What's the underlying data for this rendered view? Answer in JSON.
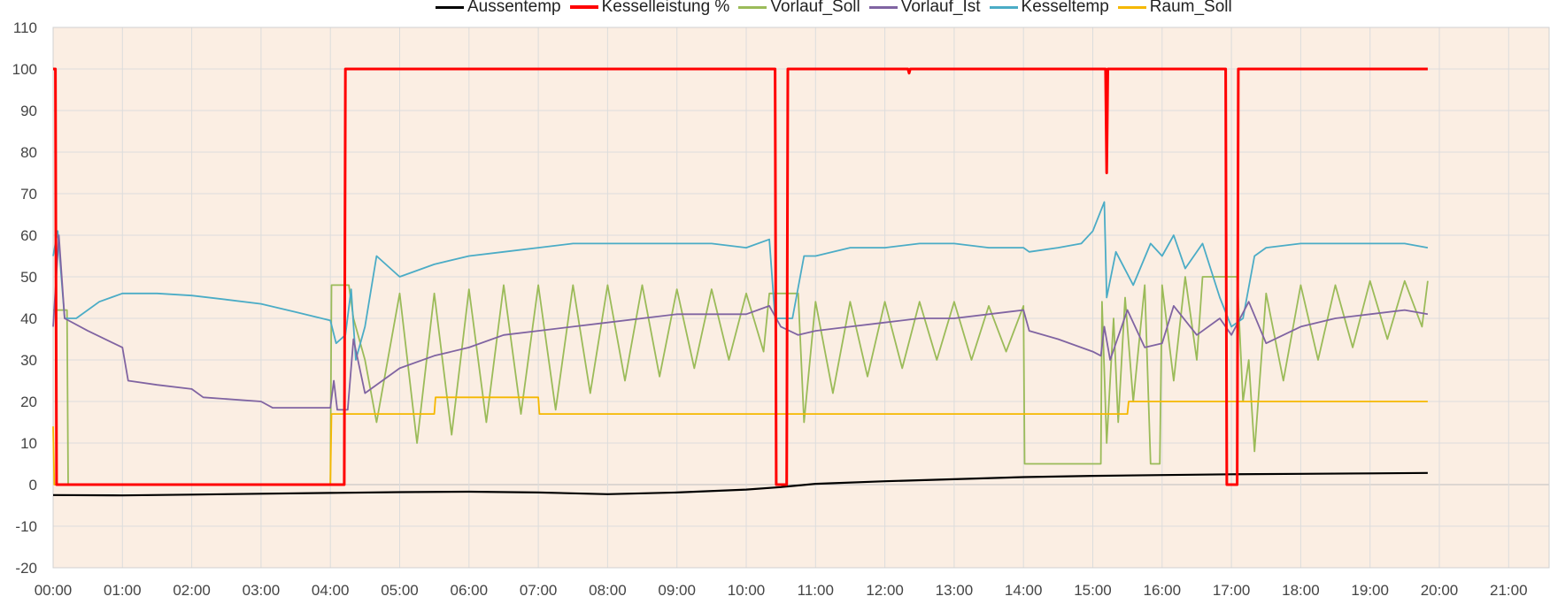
{
  "chart_data": {
    "type": "line",
    "title": "",
    "xlabel": "",
    "ylabel": "",
    "ylim": [
      -20,
      110
    ],
    "xlim": [
      "00:00",
      "21:00"
    ],
    "y_ticks": [
      "110",
      "100",
      "90",
      "80",
      "70",
      "60",
      "50",
      "40",
      "30",
      "20",
      "10",
      "0",
      "-10",
      "-20"
    ],
    "x_ticks": [
      "00:00",
      "01:00",
      "02:00",
      "03:00",
      "04:00",
      "05:00",
      "06:00",
      "07:00",
      "08:00",
      "09:00",
      "10:00",
      "11:00",
      "12:00",
      "13:00",
      "14:00",
      "15:00",
      "16:00",
      "17:00",
      "18:00",
      "19:00",
      "20:00",
      "21:00"
    ],
    "grid": true,
    "legend_position": "top",
    "plot_background": "#fbeee3",
    "series": [
      {
        "name": "Aussentemp",
        "color": "#000000",
        "points": [
          [
            "00:00",
            -2.5
          ],
          [
            "01:00",
            -2.6
          ],
          [
            "02:00",
            -2.4
          ],
          [
            "03:00",
            -2.2
          ],
          [
            "04:00",
            -2.0
          ],
          [
            "05:00",
            -1.8
          ],
          [
            "06:00",
            -1.7
          ],
          [
            "07:00",
            -1.9
          ],
          [
            "08:00",
            -2.3
          ],
          [
            "09:00",
            -1.9
          ],
          [
            "10:00",
            -1.2
          ],
          [
            "10:30",
            -0.6
          ],
          [
            "11:00",
            0.2
          ],
          [
            "12:00",
            0.8
          ],
          [
            "13:00",
            1.3
          ],
          [
            "14:00",
            1.8
          ],
          [
            "15:00",
            2.1
          ],
          [
            "16:00",
            2.3
          ],
          [
            "17:00",
            2.5
          ],
          [
            "18:00",
            2.6
          ],
          [
            "19:00",
            2.7
          ],
          [
            "19:50",
            2.8
          ]
        ]
      },
      {
        "name": "Kesselleistung %",
        "color": "#ff0000",
        "points": [
          [
            "00:00",
            100
          ],
          [
            "00:02",
            100
          ],
          [
            "00:03",
            0
          ],
          [
            "04:12",
            0
          ],
          [
            "04:13",
            100
          ],
          [
            "10:25",
            100
          ],
          [
            "10:26",
            0
          ],
          [
            "10:35",
            0
          ],
          [
            "10:36",
            100
          ],
          [
            "12:20",
            100
          ],
          [
            "12:21",
            99
          ],
          [
            "12:22",
            100
          ],
          [
            "15:11",
            100
          ],
          [
            "15:12",
            75
          ],
          [
            "15:13",
            100
          ],
          [
            "16:55",
            100
          ],
          [
            "16:56",
            0
          ],
          [
            "17:05",
            0
          ],
          [
            "17:06",
            100
          ],
          [
            "19:50",
            100
          ]
        ]
      },
      {
        "name": "Vorlauf_Soll",
        "color": "#9bbb59",
        "points": [
          [
            "00:00",
            42
          ],
          [
            "00:12",
            42
          ],
          [
            "00:13",
            0
          ],
          [
            "04:00",
            0
          ],
          [
            "04:01",
            48
          ],
          [
            "04:16",
            48
          ],
          [
            "04:20",
            40
          ],
          [
            "04:30",
            30
          ],
          [
            "04:40",
            15
          ],
          [
            "05:00",
            46
          ],
          [
            "05:15",
            10
          ],
          [
            "05:30",
            46
          ],
          [
            "05:45",
            12
          ],
          [
            "06:00",
            47
          ],
          [
            "06:15",
            15
          ],
          [
            "06:30",
            48
          ],
          [
            "06:45",
            17
          ],
          [
            "07:00",
            48
          ],
          [
            "07:15",
            18
          ],
          [
            "07:30",
            48
          ],
          [
            "07:45",
            22
          ],
          [
            "08:00",
            48
          ],
          [
            "08:15",
            25
          ],
          [
            "08:30",
            48
          ],
          [
            "08:45",
            26
          ],
          [
            "09:00",
            47
          ],
          [
            "09:15",
            28
          ],
          [
            "09:30",
            47
          ],
          [
            "09:45",
            30
          ],
          [
            "10:00",
            46
          ],
          [
            "10:15",
            32
          ],
          [
            "10:20",
            46
          ],
          [
            "10:45",
            46
          ],
          [
            "10:50",
            15
          ],
          [
            "11:00",
            44
          ],
          [
            "11:15",
            22
          ],
          [
            "11:30",
            44
          ],
          [
            "11:45",
            26
          ],
          [
            "12:00",
            44
          ],
          [
            "12:15",
            28
          ],
          [
            "12:30",
            44
          ],
          [
            "12:45",
            30
          ],
          [
            "13:00",
            44
          ],
          [
            "13:15",
            30
          ],
          [
            "13:30",
            43
          ],
          [
            "13:45",
            32
          ],
          [
            "14:00",
            43
          ],
          [
            "14:01",
            5
          ],
          [
            "15:07",
            5
          ],
          [
            "15:08",
            44
          ],
          [
            "15:12",
            10
          ],
          [
            "15:18",
            40
          ],
          [
            "15:22",
            15
          ],
          [
            "15:28",
            45
          ],
          [
            "15:35",
            20
          ],
          [
            "15:45",
            48
          ],
          [
            "15:50",
            5
          ],
          [
            "15:58",
            5
          ],
          [
            "16:00",
            48
          ],
          [
            "16:10",
            25
          ],
          [
            "16:20",
            50
          ],
          [
            "16:30",
            30
          ],
          [
            "16:35",
            50
          ],
          [
            "17:05",
            50
          ],
          [
            "17:10",
            20
          ],
          [
            "17:15",
            30
          ],
          [
            "17:20",
            8
          ],
          [
            "17:30",
            46
          ],
          [
            "17:45",
            25
          ],
          [
            "18:00",
            48
          ],
          [
            "18:15",
            30
          ],
          [
            "18:30",
            48
          ],
          [
            "18:45",
            33
          ],
          [
            "19:00",
            49
          ],
          [
            "19:15",
            35
          ],
          [
            "19:30",
            49
          ],
          [
            "19:45",
            38
          ],
          [
            "19:50",
            49
          ]
        ]
      },
      {
        "name": "Vorlauf_Ist",
        "color": "#8064a2",
        "points": [
          [
            "00:00",
            38
          ],
          [
            "00:05",
            60
          ],
          [
            "00:10",
            40
          ],
          [
            "00:30",
            37
          ],
          [
            "01:00",
            33
          ],
          [
            "01:05",
            25
          ],
          [
            "01:30",
            24
          ],
          [
            "02:00",
            23
          ],
          [
            "02:10",
            21
          ],
          [
            "03:00",
            20
          ],
          [
            "03:10",
            18.5
          ],
          [
            "04:00",
            18.5
          ],
          [
            "04:03",
            25
          ],
          [
            "04:06",
            18
          ],
          [
            "04:15",
            18
          ],
          [
            "04:20",
            35
          ],
          [
            "04:30",
            22
          ],
          [
            "05:00",
            28
          ],
          [
            "05:30",
            31
          ],
          [
            "06:00",
            33
          ],
          [
            "06:30",
            36
          ],
          [
            "07:00",
            37
          ],
          [
            "07:30",
            38
          ],
          [
            "08:00",
            39
          ],
          [
            "08:30",
            40
          ],
          [
            "09:00",
            41
          ],
          [
            "09:30",
            41
          ],
          [
            "10:00",
            41
          ],
          [
            "10:20",
            43
          ],
          [
            "10:30",
            38
          ],
          [
            "10:45",
            36
          ],
          [
            "11:00",
            37
          ],
          [
            "11:30",
            38
          ],
          [
            "12:00",
            39
          ],
          [
            "12:30",
            40
          ],
          [
            "13:00",
            40
          ],
          [
            "13:30",
            41
          ],
          [
            "14:00",
            42
          ],
          [
            "14:05",
            37
          ],
          [
            "14:30",
            35
          ],
          [
            "15:00",
            32
          ],
          [
            "15:07",
            31
          ],
          [
            "15:10",
            38
          ],
          [
            "15:15",
            30
          ],
          [
            "15:30",
            42
          ],
          [
            "15:45",
            33
          ],
          [
            "16:00",
            34
          ],
          [
            "16:10",
            43
          ],
          [
            "16:30",
            36
          ],
          [
            "16:50",
            40
          ],
          [
            "17:00",
            36
          ],
          [
            "17:15",
            44
          ],
          [
            "17:30",
            34
          ],
          [
            "18:00",
            38
          ],
          [
            "18:30",
            40
          ],
          [
            "19:00",
            41
          ],
          [
            "19:30",
            42
          ],
          [
            "19:50",
            41
          ]
        ]
      },
      {
        "name": "Kesseltemp",
        "color": "#4bacc6",
        "points": [
          [
            "00:00",
            55
          ],
          [
            "00:04",
            61
          ],
          [
            "00:10",
            40
          ],
          [
            "00:20",
            40
          ],
          [
            "00:40",
            44
          ],
          [
            "01:00",
            46
          ],
          [
            "01:30",
            46
          ],
          [
            "02:00",
            45.5
          ],
          [
            "02:30",
            44.5
          ],
          [
            "03:00",
            43.5
          ],
          [
            "03:30",
            41.5
          ],
          [
            "04:00",
            39.5
          ],
          [
            "04:05",
            34
          ],
          [
            "04:13",
            36
          ],
          [
            "04:18",
            47
          ],
          [
            "04:22",
            30
          ],
          [
            "04:30",
            38
          ],
          [
            "04:40",
            55
          ],
          [
            "05:00",
            50
          ],
          [
            "05:30",
            53
          ],
          [
            "06:00",
            55
          ],
          [
            "06:30",
            56
          ],
          [
            "07:00",
            57
          ],
          [
            "07:30",
            58
          ],
          [
            "08:00",
            58
          ],
          [
            "08:30",
            58
          ],
          [
            "09:00",
            58
          ],
          [
            "09:30",
            58
          ],
          [
            "10:00",
            57
          ],
          [
            "10:20",
            59
          ],
          [
            "10:25",
            40
          ],
          [
            "10:40",
            40
          ],
          [
            "10:50",
            55
          ],
          [
            "11:00",
            55
          ],
          [
            "11:30",
            57
          ],
          [
            "12:00",
            57
          ],
          [
            "12:30",
            58
          ],
          [
            "13:00",
            58
          ],
          [
            "13:30",
            57
          ],
          [
            "14:00",
            57
          ],
          [
            "14:05",
            56
          ],
          [
            "14:30",
            57
          ],
          [
            "14:50",
            58
          ],
          [
            "15:00",
            61
          ],
          [
            "15:10",
            68
          ],
          [
            "15:12",
            45
          ],
          [
            "15:20",
            56
          ],
          [
            "15:35",
            48
          ],
          [
            "15:50",
            58
          ],
          [
            "16:00",
            55
          ],
          [
            "16:10",
            60
          ],
          [
            "16:20",
            52
          ],
          [
            "16:35",
            58
          ],
          [
            "16:50",
            45
          ],
          [
            "17:00",
            38
          ],
          [
            "17:10",
            40
          ],
          [
            "17:20",
            55
          ],
          [
            "17:30",
            57
          ],
          [
            "18:00",
            58
          ],
          [
            "18:30",
            58
          ],
          [
            "19:00",
            58
          ],
          [
            "19:30",
            58
          ],
          [
            "19:50",
            57
          ]
        ]
      },
      {
        "name": "Raum_Soll",
        "color": "#f5b800",
        "points": [
          [
            "00:00",
            14
          ],
          [
            "00:01",
            0
          ],
          [
            "04:00",
            0
          ],
          [
            "04:01",
            17
          ],
          [
            "05:30",
            17
          ],
          [
            "05:31",
            21
          ],
          [
            "07:00",
            21
          ],
          [
            "07:01",
            17
          ],
          [
            "15:30",
            17
          ],
          [
            "15:31",
            20
          ],
          [
            "19:50",
            20
          ]
        ]
      }
    ]
  }
}
